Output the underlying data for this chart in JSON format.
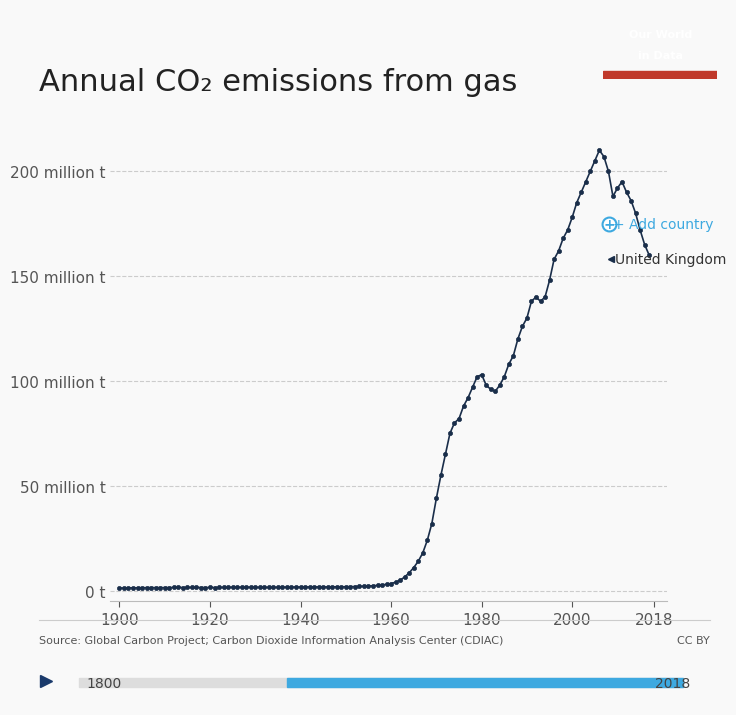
{
  "title": "Annual CO₂ emissions from gas",
  "title_fontsize": 22,
  "background_color": "#f9f9f9",
  "plot_bg_color": "#f9f9f9",
  "line_color": "#1a2e4a",
  "marker_color": "#1a2e4a",
  "ylabel_texts": [
    "0 t",
    "50 million t",
    "100 million t",
    "150 million t",
    "200 million t"
  ],
  "ytick_values": [
    0,
    50000000,
    100000000,
    150000000,
    200000000
  ],
  "xtick_values": [
    1900,
    1920,
    1940,
    1960,
    1980,
    2000,
    2018
  ],
  "xlim": [
    1898,
    2021
  ],
  "ylim": [
    -5000000,
    225000000
  ],
  "grid_color": "#cccccc",
  "source_text": "Source: Global Carbon Project; Carbon Dioxide Information Analysis Center (CDIAC)",
  "cc_text": "CC BY",
  "add_country_text": "+ Add country",
  "country_label": "United Kingdom",
  "add_country_color": "#3ea9e0",
  "logo_bg": "#1a3a6b",
  "logo_red": "#c0392b",
  "slider_color": "#3ea9e0",
  "slider_left_label": "1800",
  "slider_right_label": "2018",
  "years": [
    1900,
    1901,
    1902,
    1903,
    1904,
    1905,
    1906,
    1907,
    1908,
    1909,
    1910,
    1911,
    1912,
    1913,
    1914,
    1915,
    1916,
    1917,
    1918,
    1919,
    1920,
    1921,
    1922,
    1923,
    1924,
    1925,
    1926,
    1927,
    1928,
    1929,
    1930,
    1931,
    1932,
    1933,
    1934,
    1935,
    1936,
    1937,
    1938,
    1939,
    1940,
    1941,
    1942,
    1943,
    1944,
    1945,
    1946,
    1947,
    1948,
    1949,
    1950,
    1951,
    1952,
    1953,
    1954,
    1955,
    1956,
    1957,
    1958,
    1959,
    1960,
    1961,
    1962,
    1963,
    1964,
    1965,
    1966,
    1967,
    1968,
    1969,
    1970,
    1971,
    1972,
    1973,
    1974,
    1975,
    1976,
    1977,
    1978,
    1979,
    1980,
    1981,
    1982,
    1983,
    1984,
    1985,
    1986,
    1987,
    1988,
    1989,
    1990,
    1991,
    1992,
    1993,
    1994,
    1995,
    1996,
    1997,
    1998,
    1999,
    2000,
    2001,
    2002,
    2003,
    2004,
    2005,
    2006,
    2007,
    2008,
    2009,
    2010,
    2011,
    2012,
    2013,
    2014,
    2015,
    2016,
    2017
  ],
  "values": [
    1200000,
    1250000,
    1300000,
    1320000,
    1350000,
    1380000,
    1400000,
    1450000,
    1420000,
    1430000,
    1440000,
    1460000,
    1500000,
    1520000,
    1480000,
    1500000,
    1510000,
    1520000,
    1490000,
    1460000,
    1500000,
    1480000,
    1510000,
    1530000,
    1550000,
    1580000,
    1590000,
    1610000,
    1620000,
    1640000,
    1600000,
    1560000,
    1540000,
    1550000,
    1580000,
    1600000,
    1630000,
    1670000,
    1680000,
    1700000,
    1720000,
    1730000,
    1750000,
    1760000,
    1780000,
    1750000,
    1760000,
    1800000,
    1820000,
    1830000,
    1850000,
    1900000,
    1950000,
    2000000,
    2100000,
    2200000,
    2300000,
    2500000,
    2700000,
    3000000,
    3400000,
    4000000,
    5000000,
    6500000,
    8500000,
    11000000,
    14000000,
    18000000,
    24000000,
    32000000,
    44000000,
    55000000,
    65000000,
    75000000,
    80000000,
    82000000,
    88000000,
    92000000,
    97000000,
    102000000,
    103000000,
    98000000,
    96000000,
    95000000,
    98000000,
    102000000,
    108000000,
    112000000,
    120000000,
    126000000,
    130000000,
    138000000,
    140000000,
    138000000,
    140000000,
    148000000,
    158000000,
    162000000,
    168000000,
    172000000,
    178000000,
    185000000,
    190000000,
    195000000,
    200000000,
    205000000,
    210000000,
    207000000,
    200000000,
    188000000,
    192000000,
    195000000,
    190000000,
    186000000,
    180000000,
    172000000,
    165000000,
    160000000
  ]
}
